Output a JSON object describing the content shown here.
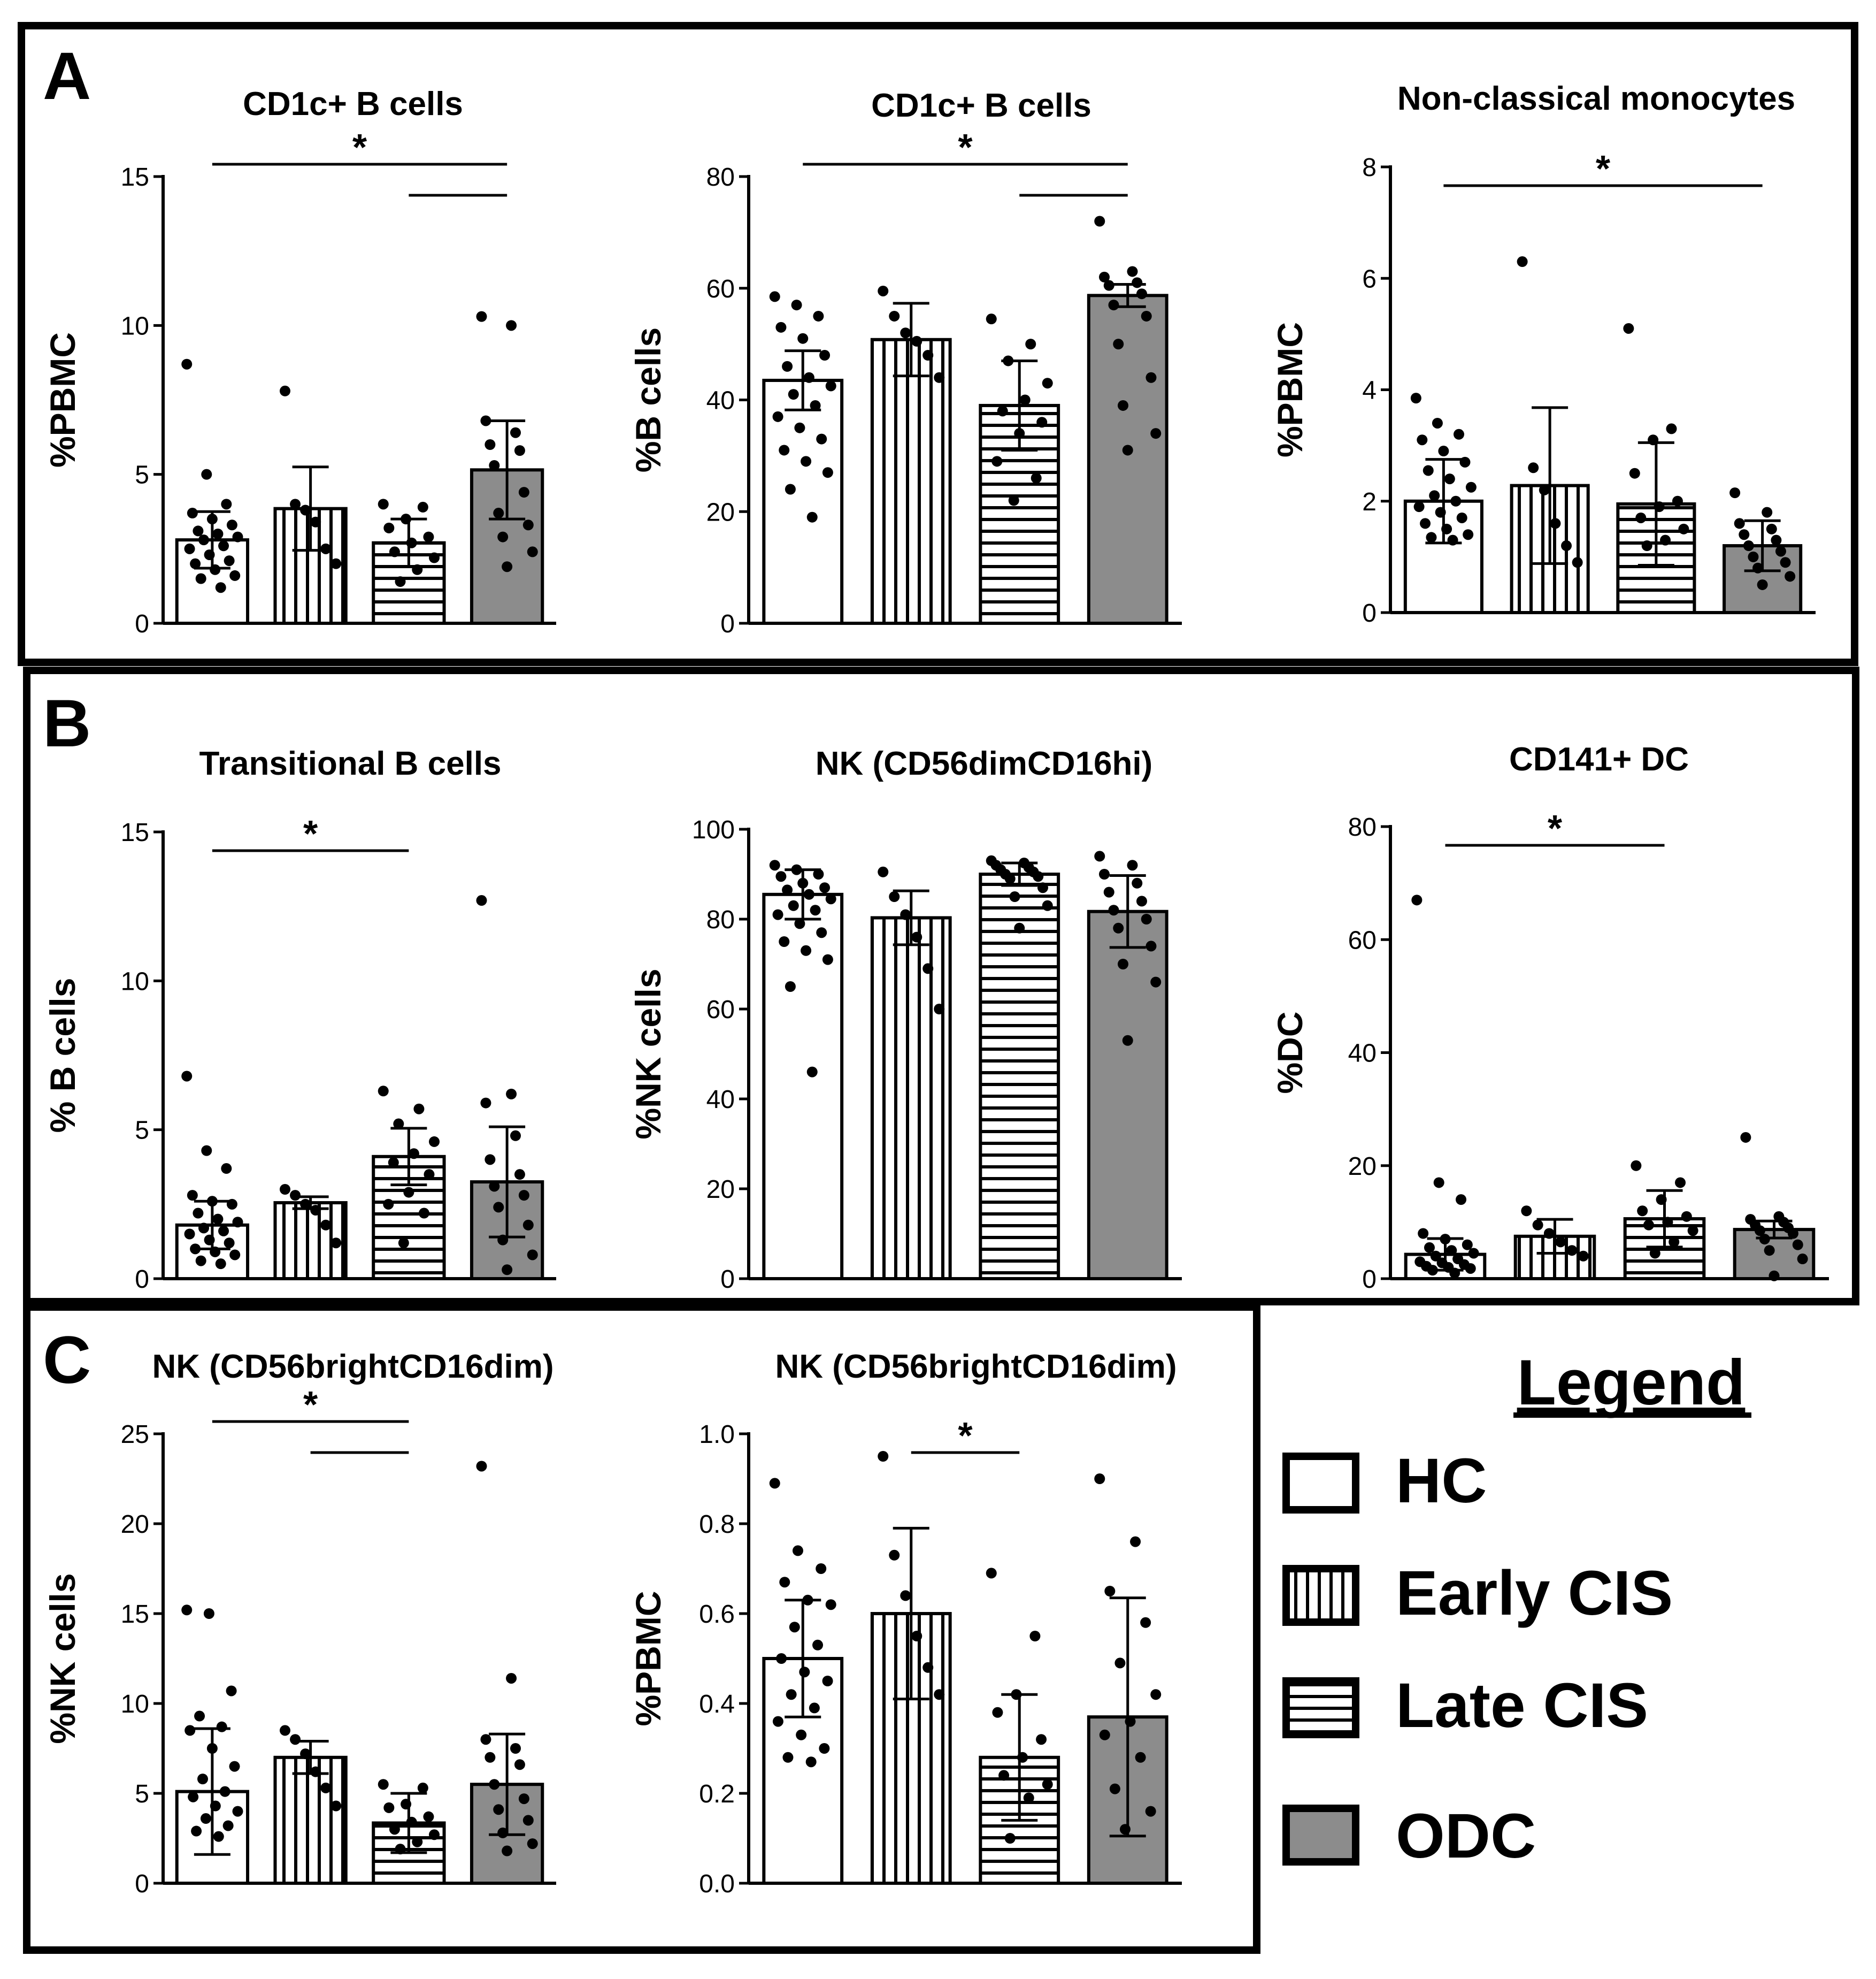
{
  "panel_labels": {
    "a": "A",
    "b": "B",
    "c": "C"
  },
  "groups": [
    "HC",
    "Early CIS",
    "Late CIS",
    "ODC"
  ],
  "colors": {
    "bar_fill_hc": "#ffffff",
    "bar_fill_odc": "#8c8c8c",
    "ink": "#000000"
  },
  "legend": {
    "title": "Legend",
    "items": [
      {
        "label": "HC",
        "pattern": "none"
      },
      {
        "label": "Early CIS",
        "pattern": "vertical-lines"
      },
      {
        "label": "Late CIS",
        "pattern": "horizontal-lines"
      },
      {
        "label": "ODC",
        "pattern": "solid-gray"
      }
    ]
  },
  "chart_data": [
    {
      "id": "a1",
      "panel": "A",
      "type": "bar",
      "title": "CD1c+ B cells",
      "ylabel": "%PBMC",
      "ylim": [
        0,
        15
      ],
      "yticks": [
        0,
        5,
        10,
        15
      ],
      "categories": [
        "HC",
        "Early CIS",
        "Late CIS",
        "ODC"
      ],
      "values": [
        2.8,
        3.85,
        2.7,
        5.15
      ],
      "errors": [
        0.95,
        1.4,
        0.8,
        1.65
      ],
      "points": [
        [
          8.7,
          5.0,
          4.0,
          3.7,
          3.5,
          3.3,
          3.1,
          3.0,
          2.9,
          2.8,
          2.6,
          2.5,
          2.3,
          2.1,
          2.0,
          1.8,
          1.6,
          1.5,
          1.2
        ],
        [
          7.8,
          4.0,
          3.8,
          3.4,
          2.5,
          2.0
        ],
        [
          4.0,
          3.9,
          3.5,
          3.2,
          2.9,
          2.7,
          2.4,
          2.2,
          1.8,
          1.4
        ],
        [
          10.3,
          10.0,
          6.8,
          6.4,
          6.0,
          5.8,
          5.3,
          4.4,
          3.7,
          3.3,
          2.9,
          2.4,
          1.9
        ]
      ],
      "significance": [
        {
          "from": 0,
          "to": 3,
          "level": 1,
          "label": "*"
        },
        {
          "from": 2,
          "to": 3,
          "level": 0,
          "label": ""
        }
      ]
    },
    {
      "id": "a2",
      "panel": "A",
      "type": "bar",
      "title": "CD1c+ B cells",
      "ylabel": "%B cells",
      "ylim": [
        0,
        80
      ],
      "yticks": [
        0,
        20,
        40,
        60,
        80
      ],
      "categories": [
        "HC",
        "Early CIS",
        "Late CIS",
        "ODC"
      ],
      "values": [
        43.5,
        50.8,
        39.0,
        58.7
      ],
      "errors": [
        5.3,
        6.5,
        8.0,
        2.0
      ],
      "points": [
        [
          58.5,
          57.0,
          55.0,
          53.0,
          51.0,
          48.0,
          46.0,
          44.0,
          42.5,
          41.0,
          39.0,
          37.0,
          35.0,
          33.0,
          31.0,
          29.0,
          27.0,
          24.0,
          19.0
        ],
        [
          59.5,
          55.0,
          52.0,
          50.5,
          48.0,
          44.0
        ],
        [
          54.5,
          50.0,
          47.0,
          43.0,
          40.0,
          38.0,
          36.0,
          34.0,
          29.0,
          26.0,
          22.0
        ],
        [
          72.0,
          63.0,
          62.0,
          61.0,
          60.5,
          59.0,
          57.0,
          55.0,
          50.0,
          44.0,
          39.0,
          34.0,
          31.0
        ]
      ],
      "significance": [
        {
          "from": 0,
          "to": 3,
          "level": 1,
          "label": "*"
        },
        {
          "from": 2,
          "to": 3,
          "level": 0,
          "label": ""
        }
      ]
    },
    {
      "id": "a3",
      "panel": "A",
      "type": "bar",
      "title": "Non-classical monocytes",
      "ylabel": "%PBMC",
      "ylim": [
        0,
        8
      ],
      "yticks": [
        0,
        2,
        4,
        6,
        8
      ],
      "categories": [
        "HC",
        "Early CIS",
        "Late CIS",
        "ODC"
      ],
      "values": [
        2.0,
        2.28,
        1.95,
        1.2
      ],
      "errors": [
        0.75,
        1.4,
        1.1,
        0.45
      ],
      "points": [
        [
          3.85,
          3.4,
          3.2,
          3.1,
          2.9,
          2.7,
          2.55,
          2.4,
          2.25,
          2.1,
          2.0,
          1.9,
          1.8,
          1.7,
          1.6,
          1.5,
          1.4,
          1.35,
          1.3
        ],
        [
          6.3,
          2.6,
          2.2,
          1.6,
          1.2,
          0.9
        ],
        [
          5.1,
          3.3,
          3.1,
          2.5,
          2.0,
          1.9,
          1.7,
          1.5,
          1.3,
          1.2
        ],
        [
          2.15,
          1.8,
          1.6,
          1.5,
          1.4,
          1.3,
          1.2,
          1.1,
          1.0,
          0.9,
          0.8,
          0.65,
          0.5
        ]
      ],
      "significance": [
        {
          "from": 0,
          "to": 3,
          "level": 0,
          "label": "*"
        }
      ]
    },
    {
      "id": "b1",
      "panel": "B",
      "type": "bar",
      "title": "Transitional B cells",
      "ylabel": "% B cells",
      "ylim": [
        0,
        15
      ],
      "yticks": [
        0,
        5,
        10,
        15
      ],
      "categories": [
        "HC",
        "Early CIS",
        "Late CIS",
        "ODC"
      ],
      "values": [
        1.8,
        2.55,
        4.1,
        3.25
      ],
      "errors": [
        0.8,
        0.2,
        0.95,
        1.85
      ],
      "points": [
        [
          6.8,
          4.3,
          3.7,
          2.8,
          2.6,
          2.5,
          2.2,
          2.0,
          1.9,
          1.7,
          1.6,
          1.5,
          1.3,
          1.2,
          1.0,
          0.9,
          0.8,
          0.6,
          0.5
        ],
        [
          3.0,
          2.8,
          2.5,
          2.3,
          1.8,
          1.2
        ],
        [
          6.3,
          5.7,
          5.2,
          4.6,
          4.2,
          3.9,
          3.5,
          2.9,
          2.5,
          2.2,
          1.2
        ],
        [
          12.7,
          6.2,
          5.9,
          4.8,
          4.0,
          3.5,
          3.1,
          2.8,
          2.4,
          1.8,
          1.3,
          0.8,
          0.3
        ]
      ],
      "significance": [
        {
          "from": 0,
          "to": 2,
          "level": 0,
          "label": "*"
        }
      ]
    },
    {
      "id": "b2",
      "panel": "B",
      "type": "bar",
      "title": "NK (CD56dimCD16hi)",
      "ylabel": "%NK cells",
      "ylim": [
        0,
        100
      ],
      "yticks": [
        0,
        20,
        40,
        60,
        80,
        100
      ],
      "categories": [
        "HC",
        "Early CIS",
        "Late CIS",
        "ODC"
      ],
      "values": [
        85.5,
        80.3,
        90.0,
        81.7
      ],
      "errors": [
        5.5,
        6.0,
        2.5,
        8.0
      ],
      "points": [
        [
          92.0,
          91.0,
          90.0,
          89.5,
          88.0,
          87.0,
          86.5,
          85.5,
          84.5,
          83.0,
          82.0,
          81.0,
          79.0,
          77.0,
          75.0,
          73.0,
          71.0,
          65.0,
          46.0
        ],
        [
          90.5,
          85.0,
          81.0,
          76.0,
          69.0,
          60.0
        ],
        [
          93.0,
          92.5,
          92.0,
          91.5,
          91.0,
          90.5,
          90.0,
          89.5,
          89.0,
          87.0,
          85.0,
          83.0,
          78.0
        ],
        [
          94.0,
          92.0,
          90.0,
          88.0,
          86.0,
          84.0,
          82.0,
          80.0,
          78.0,
          74.0,
          70.0,
          66.0,
          53.0
        ]
      ],
      "significance": []
    },
    {
      "id": "b3",
      "panel": "B",
      "type": "bar",
      "title": "CD141+ DC",
      "ylabel": "%DC",
      "ylim": [
        0,
        80
      ],
      "yticks": [
        0,
        20,
        40,
        60,
        80
      ],
      "categories": [
        "HC",
        "Early CIS",
        "Late CIS",
        "ODC"
      ],
      "values": [
        4.3,
        7.5,
        10.6,
        8.7
      ],
      "errors": [
        2.8,
        3.0,
        5.0,
        1.5
      ],
      "points": [
        [
          67.0,
          17.0,
          14.0,
          8.0,
          7.0,
          6.0,
          5.5,
          5.0,
          4.5,
          4.0,
          3.5,
          3.0,
          2.8,
          2.5,
          2.2,
          2.0,
          1.8,
          1.5,
          1.0
        ],
        [
          12.0,
          9.5,
          8.0,
          6.5,
          5.0,
          4.0
        ],
        [
          20.0,
          17.0,
          14.0,
          12.0,
          11.0,
          10.0,
          9.5,
          8.5,
          6.5,
          4.5
        ],
        [
          25.0,
          11.0,
          10.5,
          10.0,
          9.5,
          9.0,
          8.5,
          8.0,
          7.0,
          6.0,
          5.0,
          3.5,
          0.5
        ]
      ],
      "significance": [
        {
          "from": 0,
          "to": 2,
          "level": 0,
          "label": "*"
        }
      ]
    },
    {
      "id": "c1",
      "panel": "C",
      "type": "bar",
      "title": "NK (CD56brightCD16dim)",
      "ylabel": "%NK cells",
      "ylim": [
        0,
        25
      ],
      "yticks": [
        0,
        5,
        10,
        15,
        20,
        25
      ],
      "categories": [
        "HC",
        "Early CIS",
        "Late CIS",
        "ODC"
      ],
      "values": [
        5.1,
        7.0,
        3.35,
        5.5
      ],
      "errors": [
        3.5,
        0.9,
        1.65,
        2.8
      ],
      "points": [
        [
          15.2,
          15.0,
          10.7,
          9.3,
          8.7,
          8.5,
          7.5,
          6.5,
          5.8,
          5.1,
          4.8,
          4.3,
          4.0,
          3.6,
          3.2,
          2.9,
          2.6
        ],
        [
          8.5,
          8.0,
          7.2,
          6.2,
          5.3,
          4.3
        ],
        [
          5.5,
          5.3,
          4.4,
          4.2,
          3.7,
          3.4,
          3.0,
          2.7,
          2.3,
          1.9
        ],
        [
          23.2,
          11.4,
          8.0,
          7.5,
          7.0,
          6.6,
          5.5,
          4.7,
          4.1,
          3.5,
          2.8,
          2.2,
          1.8
        ]
      ],
      "significance": [
        {
          "from": 0,
          "to": 2,
          "level": 1,
          "label": "*"
        },
        {
          "from": 1,
          "to": 2,
          "level": 0,
          "label": ""
        }
      ]
    },
    {
      "id": "c2",
      "panel": "C",
      "type": "bar",
      "title": "NK (CD56brightCD16dim)",
      "ylabel": "%PBMC",
      "ylim": [
        0,
        1.0
      ],
      "yticks": [
        "0.0",
        "0.2",
        "0.4",
        "0.6",
        "0.8",
        "1.0"
      ],
      "categories": [
        "HC",
        "Early CIS",
        "Late CIS",
        "ODC"
      ],
      "values": [
        0.5,
        0.6,
        0.28,
        0.37
      ],
      "errors": [
        0.13,
        0.19,
        0.14,
        0.265
      ],
      "points": [
        [
          0.89,
          0.74,
          0.7,
          0.67,
          0.63,
          0.62,
          0.57,
          0.53,
          0.5,
          0.47,
          0.45,
          0.42,
          0.39,
          0.36,
          0.33,
          0.3,
          0.28,
          0.27
        ],
        [
          0.95,
          0.73,
          0.64,
          0.55,
          0.48,
          0.42
        ],
        [
          0.69,
          0.55,
          0.42,
          0.38,
          0.32,
          0.28,
          0.24,
          0.22,
          0.19,
          0.1
        ],
        [
          0.9,
          0.76,
          0.65,
          0.58,
          0.49,
          0.42,
          0.36,
          0.33,
          0.28,
          0.21,
          0.16,
          0.12
        ]
      ],
      "significance": [
        {
          "from": 1,
          "to": 2,
          "level": 0,
          "label": "*"
        }
      ]
    }
  ]
}
